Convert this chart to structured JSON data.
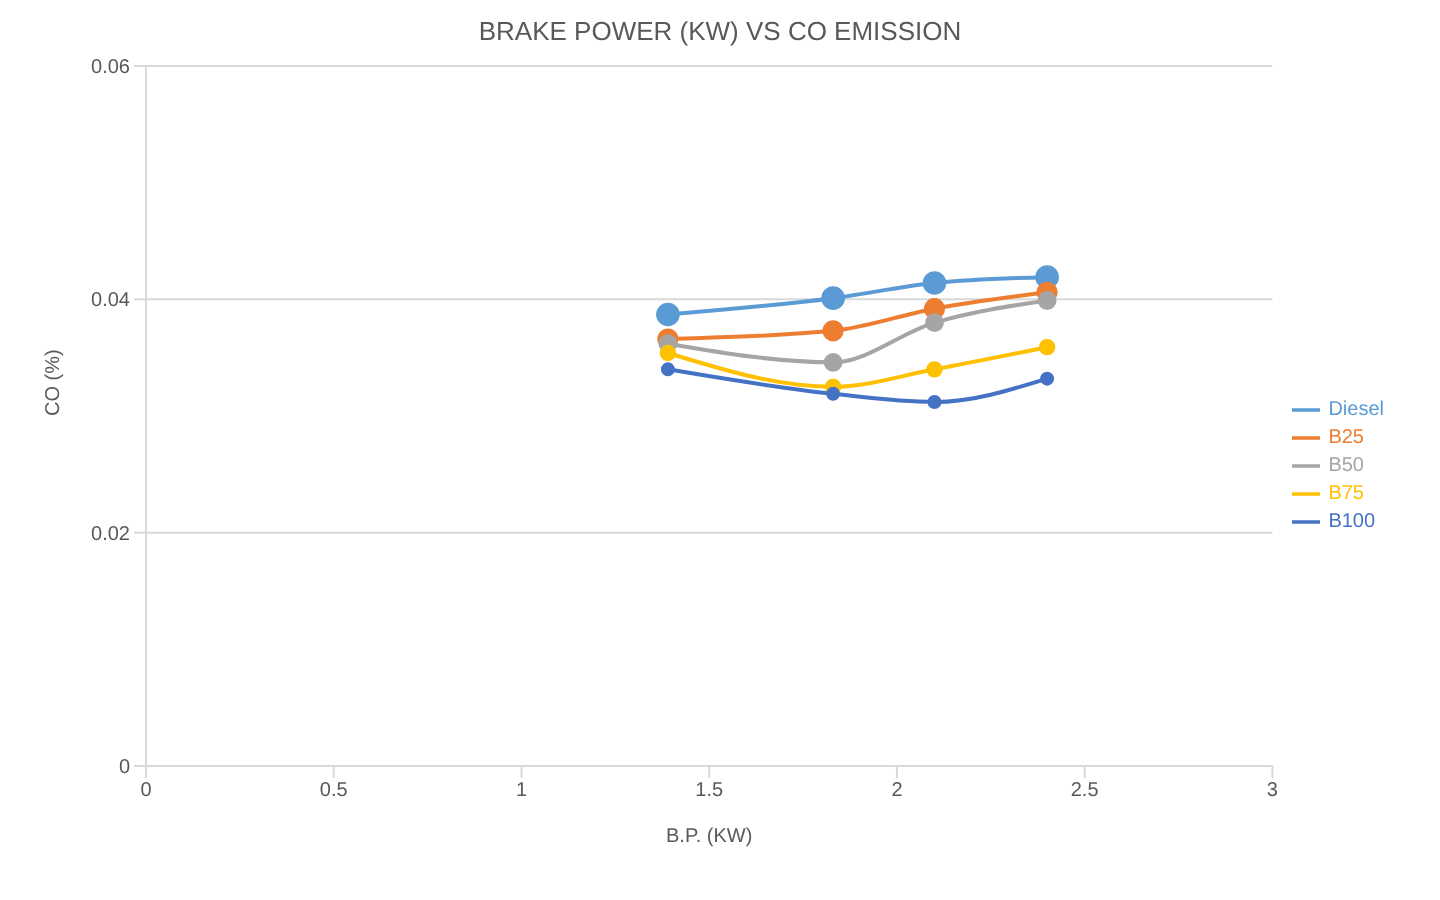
{
  "chart_data": {
    "type": "line",
    "title": "BRAKE POWER (KW) VS CO EMISSION",
    "xlabel": "B.P. (KW)",
    "ylabel": "CO (%)",
    "x": [
      1.39,
      1.83,
      2.1,
      2.4
    ],
    "series": [
      {
        "name": "Diesel",
        "color": "#5b9bd5",
        "values": [
          0.0387,
          0.0401,
          0.0414,
          0.0419
        ]
      },
      {
        "name": "B25",
        "color": "#ed7d31",
        "values": [
          0.0366,
          0.0373,
          0.0392,
          0.0406
        ]
      },
      {
        "name": "B50",
        "color": "#a5a5a5",
        "values": [
          0.0362,
          0.0346,
          0.038,
          0.0399
        ]
      },
      {
        "name": "B75",
        "color": "#ffc000",
        "values": [
          0.0354,
          0.0325,
          0.034,
          0.0359
        ]
      },
      {
        "name": "B100",
        "color": "#4472c4",
        "values": [
          0.034,
          0.0319,
          0.0312,
          0.0332
        ]
      }
    ],
    "xlim": [
      0,
      3
    ],
    "xticks": [
      0,
      0.5,
      1,
      1.5,
      2,
      2.5,
      3
    ],
    "ylim": [
      0,
      0.06
    ],
    "yticks": [
      0,
      0.02,
      0.04,
      0.06
    ],
    "grid": "y",
    "legend": "right",
    "marker": "circle",
    "line_style": "solid"
  }
}
